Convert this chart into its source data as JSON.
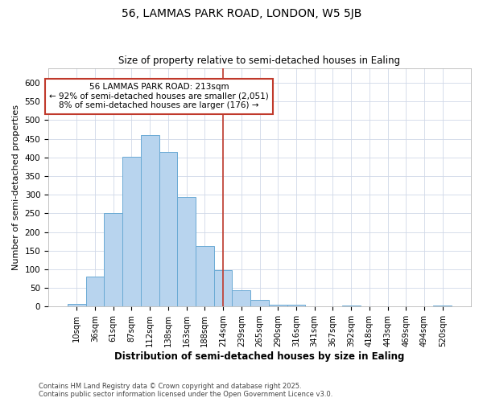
{
  "title1": "56, LAMMAS PARK ROAD, LONDON, W5 5JB",
  "title2": "Size of property relative to semi-detached houses in Ealing",
  "xlabel": "Distribution of semi-detached houses by size in Ealing",
  "ylabel": "Number of semi-detached properties",
  "bin_labels": [
    "10sqm",
    "36sqm",
    "61sqm",
    "87sqm",
    "112sqm",
    "138sqm",
    "163sqm",
    "188sqm",
    "214sqm",
    "239sqm",
    "265sqm",
    "290sqm",
    "316sqm",
    "341sqm",
    "367sqm",
    "392sqm",
    "418sqm",
    "443sqm",
    "469sqm",
    "494sqm",
    "520sqm"
  ],
  "bar_heights": [
    8,
    80,
    250,
    402,
    460,
    414,
    295,
    162,
    97,
    43,
    18,
    6,
    6,
    0,
    0,
    2,
    0,
    0,
    0,
    0,
    2
  ],
  "bar_color": "#b8d4ee",
  "bar_edge_color": "#6aaad4",
  "vline_color": "#c0392b",
  "annotation_text": "56 LAMMAS PARK ROAD: 213sqm\n← 92% of semi-detached houses are smaller (2,051)\n8% of semi-detached houses are larger (176) →",
  "annotation_box_color": "#c0392b",
  "ylim": [
    0,
    640
  ],
  "yticks": [
    0,
    50,
    100,
    150,
    200,
    250,
    300,
    350,
    400,
    450,
    500,
    550,
    600
  ],
  "footnote1": "Contains HM Land Registry data © Crown copyright and database right 2025.",
  "footnote2": "Contains public sector information licensed under the Open Government Licence v3.0.",
  "bg_color": "#ffffff",
  "grid_color": "#d0d8e8"
}
